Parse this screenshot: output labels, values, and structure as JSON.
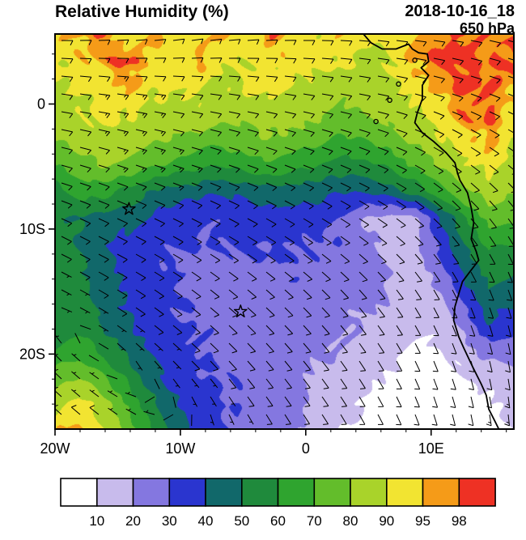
{
  "header": {
    "title": "Relative Humidity (%)",
    "datetime": "2018-10-16_18",
    "level": "650 hPa"
  },
  "chart_data": {
    "type": "heatmap",
    "title": "Relative Humidity (%)",
    "valid_datetime": "2018-10-16_18",
    "pressure_level": "650 hPa",
    "units": "%",
    "lon_range": [
      -20,
      16.6
    ],
    "lat_range": [
      -26,
      5.6
    ],
    "x_ticks": [
      {
        "value": -20,
        "label": "20W"
      },
      {
        "value": -10,
        "label": "10W"
      },
      {
        "value": 0,
        "label": "0"
      },
      {
        "value": 10,
        "label": "10E"
      }
    ],
    "y_ticks": [
      {
        "value": 0,
        "label": "0"
      },
      {
        "value": -10,
        "label": "10S"
      },
      {
        "value": -20,
        "label": "20S"
      }
    ],
    "levels": [
      10,
      20,
      30,
      40,
      50,
      60,
      70,
      80,
      90,
      95,
      98
    ],
    "palette": [
      "#ffffff",
      "#c8bbec",
      "#8477e0",
      "#2a35cf",
      "#11686a",
      "#1f8a3c",
      "#2fa42f",
      "#63bd2b",
      "#a9d32a",
      "#f2e431",
      "#f59b18",
      "#ee3124"
    ],
    "grid": {
      "lon": [
        -20,
        -18.1,
        -16.2,
        -14.2,
        -12.3,
        -10.4,
        -8.5,
        -6.6,
        -4.6,
        -2.7,
        -0.8,
        1.1,
        3.1,
        5.0,
        6.9,
        8.8,
        10.8,
        12.7,
        14.6,
        16.5
      ],
      "lat": [
        5.6,
        3.5,
        1.4,
        -0.7,
        -2.8,
        -4.9,
        -7.0,
        -9.1,
        -11.2,
        -13.3,
        -15.4,
        -17.5,
        -19.6,
        -21.7,
        -23.8,
        -26.0
      ],
      "rh": [
        [
          93,
          96,
          99,
          93,
          97,
          92,
          92,
          96,
          91,
          99,
          93,
          92,
          96,
          92,
          91,
          93,
          97,
          99,
          99,
          97
        ],
        [
          91,
          93,
          96,
          99,
          93,
          91,
          96,
          92,
          91,
          93,
          92,
          91,
          92,
          88,
          92,
          96,
          99,
          99,
          97,
          99
        ],
        [
          88,
          91,
          92,
          96,
          92,
          93,
          91,
          88,
          92,
          91,
          88,
          87,
          84,
          86,
          88,
          92,
          96,
          99,
          99,
          96
        ],
        [
          86,
          88,
          92,
          91,
          87,
          85,
          88,
          84,
          83,
          86,
          84,
          82,
          79,
          82,
          85,
          88,
          93,
          97,
          99,
          93
        ],
        [
          80,
          85,
          88,
          85,
          82,
          79,
          76,
          74,
          77,
          79,
          76,
          72,
          69,
          72,
          77,
          83,
          89,
          93,
          96,
          91
        ],
        [
          68,
          76,
          80,
          77,
          72,
          67,
          63,
          60,
          64,
          67,
          63,
          59,
          56,
          58,
          63,
          71,
          80,
          89,
          92,
          88
        ],
        [
          57,
          62,
          63,
          57,
          50,
          46,
          43,
          41,
          43,
          46,
          45,
          43,
          41,
          42,
          46,
          54,
          64,
          78,
          85,
          82
        ],
        [
          52,
          50,
          46,
          42,
          38,
          35,
          33,
          32,
          33,
          35,
          34,
          33,
          30,
          18,
          16,
          18,
          40,
          58,
          72,
          74
        ],
        [
          58,
          48,
          41,
          36,
          33,
          31,
          30,
          29,
          30,
          31,
          31,
          30,
          28,
          22,
          16,
          18,
          32,
          50,
          62,
          60
        ],
        [
          61,
          52,
          43,
          37,
          33,
          30,
          28,
          27,
          28,
          29,
          29,
          28,
          26,
          24,
          20,
          16,
          26,
          42,
          52,
          50
        ],
        [
          58,
          54,
          45,
          38,
          34,
          31,
          28,
          26,
          27,
          28,
          27,
          26,
          24,
          22,
          19,
          16,
          18,
          34,
          46,
          44
        ],
        [
          54,
          58,
          49,
          41,
          35,
          31,
          29,
          27,
          26,
          26,
          25,
          23,
          21,
          18,
          15,
          13,
          14,
          24,
          40,
          35
        ],
        [
          62,
          67,
          58,
          47,
          38,
          33,
          30,
          28,
          27,
          26,
          24,
          21,
          18,
          15,
          12,
          9,
          10,
          16,
          24,
          22
        ],
        [
          74,
          80,
          71,
          57,
          44,
          36,
          31,
          29,
          28,
          26,
          23,
          19,
          15,
          11,
          8,
          7,
          7,
          10,
          14,
          16
        ],
        [
          87,
          93,
          85,
          69,
          52,
          40,
          33,
          30,
          28,
          26,
          22,
          17,
          12,
          8,
          6,
          5,
          5,
          7,
          9,
          12
        ],
        [
          93,
          97,
          91,
          77,
          60,
          45,
          36,
          31,
          29,
          26,
          21,
          15,
          10,
          7,
          5,
          4,
          4,
          5,
          7,
          9
        ]
      ]
    },
    "wind_barbs": {
      "units": "kt",
      "lon": [
        -20,
        -14.8,
        -9.6,
        -4.4,
        0.9,
        6.1,
        11.3,
        16.5
      ],
      "lat": [
        5.6,
        0.3,
        -4.9,
        -10.2,
        -15.5,
        -20.7,
        -26.0
      ],
      "u": [
        [
          -12,
          -12,
          -11,
          -10,
          -10,
          -9,
          -8,
          -8
        ],
        [
          -12,
          -13,
          -12,
          -11,
          -10,
          -9,
          -8,
          -7
        ],
        [
          -11,
          -12,
          -12,
          -11,
          -10,
          -9,
          -7,
          -6
        ],
        [
          -8,
          -10,
          -11,
          -10,
          -9,
          -8,
          -6,
          -5
        ],
        [
          -4,
          -8,
          -9,
          -9,
          -8,
          -7,
          -5,
          -3
        ],
        [
          5,
          0,
          -5,
          -7,
          -7,
          -6,
          -4,
          -2
        ],
        [
          9,
          7,
          2,
          -3,
          -5,
          -5,
          -3,
          -1
        ]
      ],
      "v": [
        [
          0,
          -1,
          -2,
          -1,
          0,
          1,
          1,
          2
        ],
        [
          2,
          2,
          2,
          2,
          2,
          2,
          3,
          3
        ],
        [
          3,
          4,
          4,
          4,
          4,
          4,
          5,
          5
        ],
        [
          4,
          5,
          6,
          6,
          6,
          6,
          7,
          8
        ],
        [
          2,
          5,
          7,
          8,
          8,
          9,
          10,
          10
        ],
        [
          -5,
          1,
          5,
          8,
          9,
          10,
          11,
          12
        ],
        [
          -8,
          -5,
          1,
          6,
          8,
          10,
          12,
          13
        ]
      ]
    },
    "markers": [
      {
        "symbol": "star",
        "lon": -14.1,
        "lat": -8.4
      },
      {
        "symbol": "star",
        "lon": -5.2,
        "lat": -16.6
      }
    ],
    "coastline": [
      [
        4.6,
        5.6
      ],
      [
        5.2,
        4.9
      ],
      [
        6.1,
        4.4
      ],
      [
        7.2,
        4.4
      ],
      [
        8.2,
        4.8
      ],
      [
        8.5,
        4.4
      ],
      [
        9.0,
        4.1
      ],
      [
        9.7,
        4.0
      ],
      [
        9.8,
        3.4
      ],
      [
        9.2,
        2.9
      ],
      [
        9.8,
        2.3
      ],
      [
        9.3,
        1.5
      ],
      [
        9.3,
        0.4
      ],
      [
        8.9,
        -0.7
      ],
      [
        8.7,
        -1.5
      ],
      [
        9.3,
        -2.3
      ],
      [
        10.2,
        -3.0
      ],
      [
        11.2,
        -3.9
      ],
      [
        11.9,
        -4.7
      ],
      [
        12.1,
        -5.5
      ],
      [
        12.3,
        -6.1
      ],
      [
        12.9,
        -7.1
      ],
      [
        13.2,
        -8.3
      ],
      [
        13.4,
        -9.5
      ],
      [
        13.2,
        -10.8
      ],
      [
        13.6,
        -11.8
      ],
      [
        13.8,
        -12.5
      ],
      [
        13.1,
        -13.4
      ],
      [
        12.5,
        -14.2
      ],
      [
        12.2,
        -15.2
      ],
      [
        11.9,
        -16.2
      ],
      [
        11.8,
        -17.3
      ],
      [
        12.2,
        -18.6
      ],
      [
        12.6,
        -19.5
      ],
      [
        13.3,
        -21.0
      ],
      [
        14.0,
        -22.4
      ],
      [
        14.4,
        -23.3
      ],
      [
        14.6,
        -24.4
      ],
      [
        15.1,
        -25.4
      ],
      [
        15.4,
        -26.0
      ]
    ],
    "islands": [
      [
        8.7,
        3.5
      ],
      [
        7.4,
        1.6
      ],
      [
        6.7,
        0.3
      ],
      [
        5.6,
        -1.4
      ]
    ]
  }
}
